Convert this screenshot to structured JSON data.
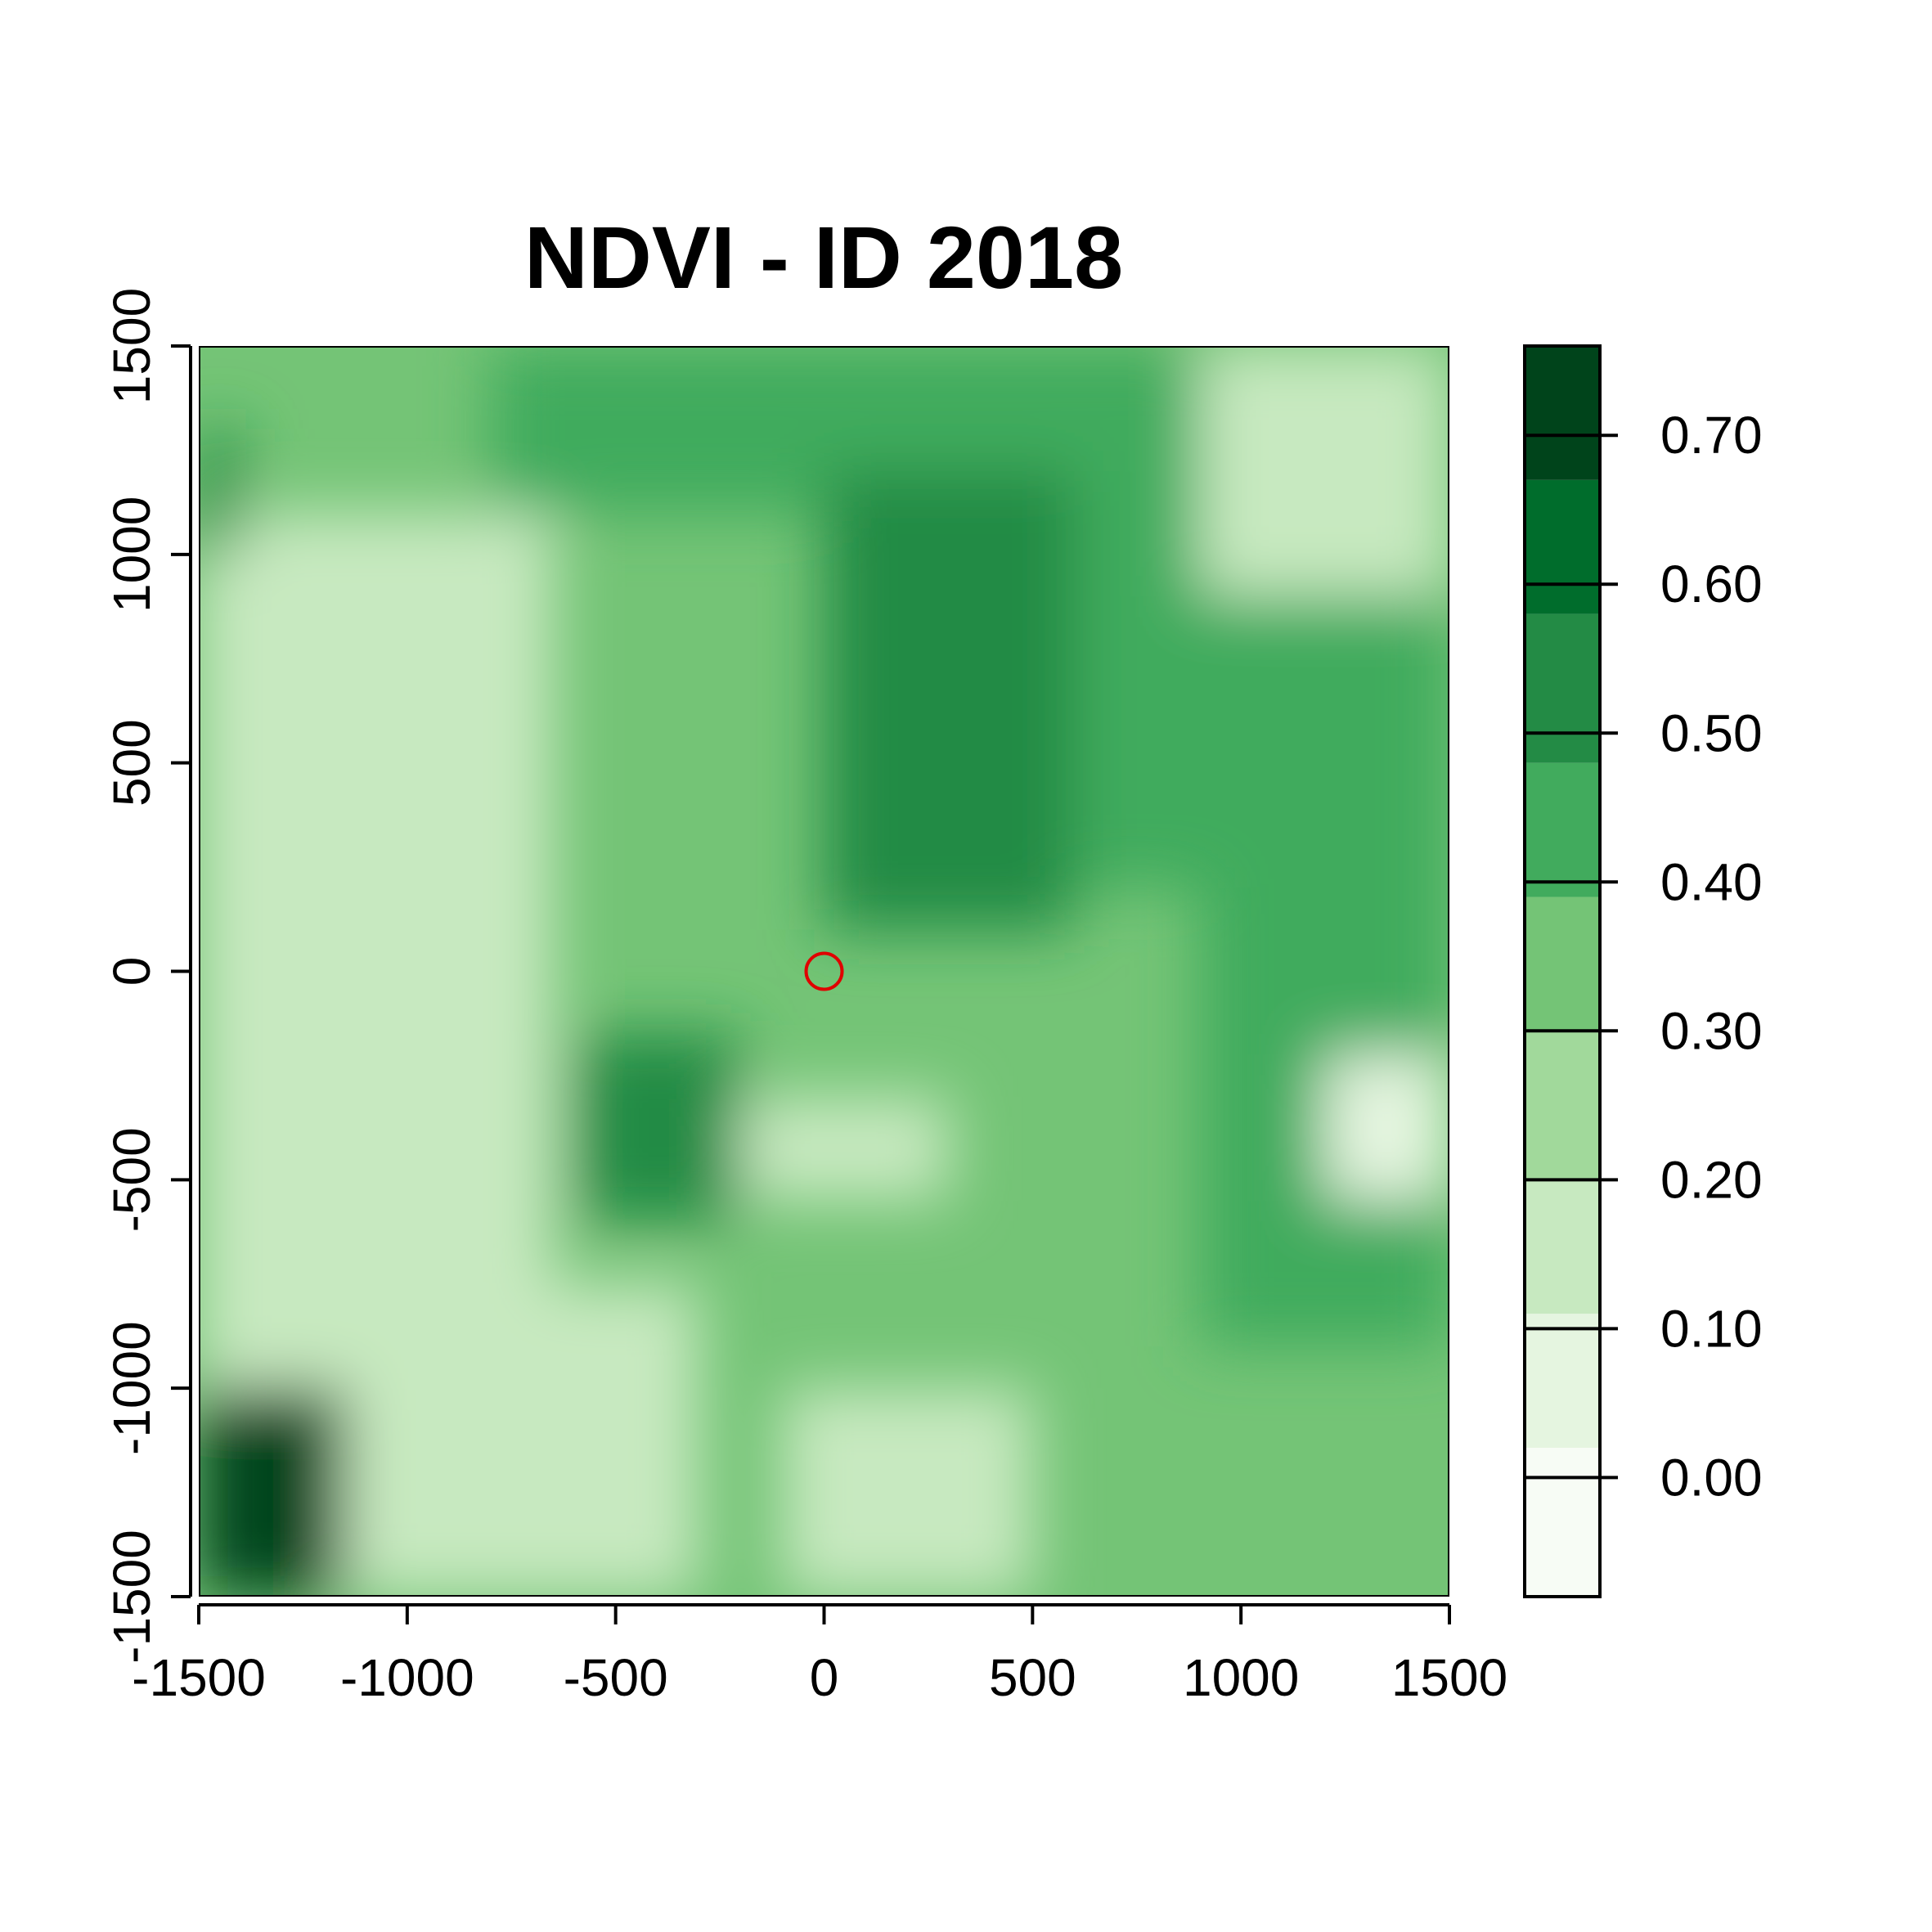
{
  "chart_data": {
    "type": "heatmap",
    "title": "NDVI - ID 2018",
    "xlabel": "",
    "ylabel": "",
    "xlim": [
      -1500,
      1500
    ],
    "ylim": [
      -1500,
      1500
    ],
    "x_ticks": [
      -1500,
      -1000,
      -500,
      0,
      500,
      1000,
      1500
    ],
    "y_ticks": [
      -1500,
      -1000,
      -500,
      0,
      500,
      1000,
      1500
    ],
    "x_tick_labels": [
      "-1500",
      "-1000",
      "-500",
      "0",
      "500",
      "1000",
      "1500"
    ],
    "y_tick_labels": [
      "-1500",
      "-1000",
      "-500",
      "0",
      "500",
      "1000",
      "1500"
    ],
    "grid": false,
    "legend": {
      "placement": "right",
      "range": [
        -0.08,
        0.76
      ],
      "ticks": [
        0.0,
        0.1,
        0.2,
        0.3,
        0.4,
        0.5,
        0.6,
        0.7
      ],
      "tick_labels": [
        "0.00",
        "0.10",
        "0.20",
        "0.30",
        "0.40",
        "0.50",
        "0.60",
        "0.70"
      ],
      "classes": [
        {
          "from": -0.08,
          "to": 0.02,
          "color": "#F7FCF5"
        },
        {
          "from": 0.02,
          "to": 0.11,
          "color": "#E5F5E0"
        },
        {
          "from": 0.11,
          "to": 0.2,
          "color": "#C7E9C0"
        },
        {
          "from": 0.2,
          "to": 0.3,
          "color": "#A1D99B"
        },
        {
          "from": 0.3,
          "to": 0.39,
          "color": "#74C476"
        },
        {
          "from": 0.39,
          "to": 0.48,
          "color": "#41AB5D"
        },
        {
          "from": 0.48,
          "to": 0.58,
          "color": "#238B45"
        },
        {
          "from": 0.58,
          "to": 0.67,
          "color": "#006D2C"
        },
        {
          "from": 0.67,
          "to": 0.76,
          "color": "#00441B"
        }
      ]
    },
    "marker": {
      "x": 0,
      "y": 0,
      "shape": "circle",
      "color": "#E00000"
    },
    "raster_regions": [
      {
        "label": "west-pale-plateau",
        "x": [
          -1500,
          -650
        ],
        "y": [
          -1000,
          1100
        ],
        "value": 0.16
      },
      {
        "label": "south-pale-field",
        "x": [
          -1300,
          -300
        ],
        "y": [
          -1500,
          -750
        ],
        "value": 0.18
      },
      {
        "label": "south-central-pale",
        "x": [
          -100,
          500
        ],
        "y": [
          -1500,
          -1000
        ],
        "value": 0.16
      },
      {
        "label": "central-pale-patch",
        "x": [
          -200,
          300
        ],
        "y": [
          -550,
          -300
        ],
        "value": 0.17
      },
      {
        "label": "north-band",
        "x": [
          -800,
          1500
        ],
        "y": [
          1100,
          1500
        ],
        "value": 0.42
      },
      {
        "label": "northeast-band",
        "x": [
          600,
          1500
        ],
        "y": [
          200,
          1500
        ],
        "value": 0.42
      },
      {
        "label": "east-block",
        "x": [
          900,
          1500
        ],
        "y": [
          -900,
          200
        ],
        "value": 0.4
      },
      {
        "label": "central-valley",
        "x": [
          0,
          600
        ],
        "y": [
          100,
          1200
        ],
        "value": 0.5
      },
      {
        "label": "southwest-dark-edge",
        "x": [
          -1500,
          -1150
        ],
        "y": [
          -1500,
          -1000
        ],
        "value": 0.72
      },
      {
        "label": "northwest-dark-edge",
        "x": [
          -1500,
          -1400
        ],
        "y": [
          1000,
          1300
        ],
        "value": 0.52
      },
      {
        "label": "central-ridge",
        "x": [
          -600,
          -200
        ],
        "y": [
          -600,
          -150
        ],
        "value": 0.52
      },
      {
        "label": "east-road-bright",
        "x": [
          1200,
          1500
        ],
        "y": [
          -550,
          -200
        ],
        "value": 0.05
      },
      {
        "label": "northeast-road-bright",
        "x": [
          900,
          1500
        ],
        "y": [
          900,
          1500
        ],
        "value": 0.18
      }
    ]
  }
}
